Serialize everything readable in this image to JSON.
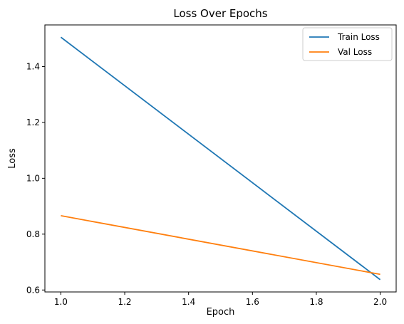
{
  "chart_data": {
    "type": "line",
    "title": "Loss Over Epochs",
    "xlabel": "Epoch",
    "ylabel": "Loss",
    "xlim": [
      0.95,
      2.05
    ],
    "ylim": [
      0.593,
      1.549
    ],
    "x_ticks": [
      1.0,
      1.2,
      1.4,
      1.6,
      1.8,
      2.0
    ],
    "x_tick_labels": [
      "1.0",
      "1.2",
      "1.4",
      "1.6",
      "1.8",
      "2.0"
    ],
    "y_ticks": [
      0.6,
      0.8,
      1.0,
      1.2,
      1.4
    ],
    "y_tick_labels": [
      "0.6",
      "0.8",
      "1.0",
      "1.2",
      "1.4"
    ],
    "x": [
      1,
      2
    ],
    "series": [
      {
        "name": "Train Loss",
        "values": [
          1.505,
          0.637
        ],
        "color": "#1f77b4"
      },
      {
        "name": "Val Loss",
        "values": [
          0.866,
          0.656
        ],
        "color": "#ff7f0e"
      }
    ],
    "grid": false,
    "legend_position": "top-right"
  }
}
